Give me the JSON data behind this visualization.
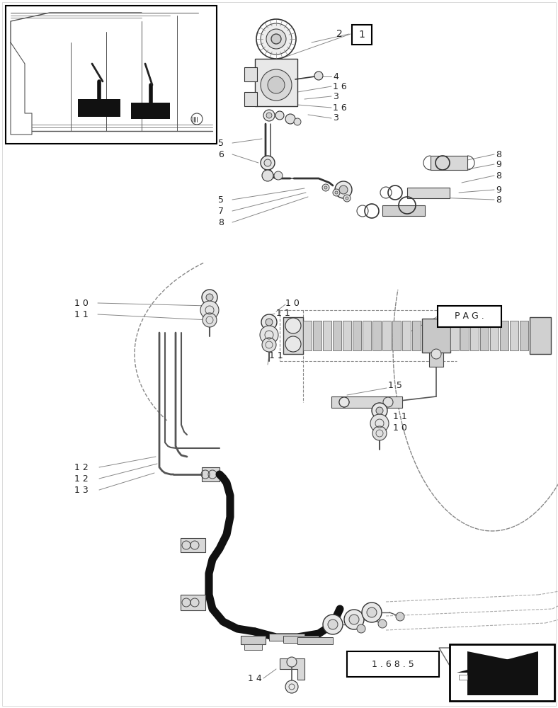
{
  "background_color": "#ffffff",
  "figure_width": 7.88,
  "figure_height": 10.0,
  "dpi": 100
}
